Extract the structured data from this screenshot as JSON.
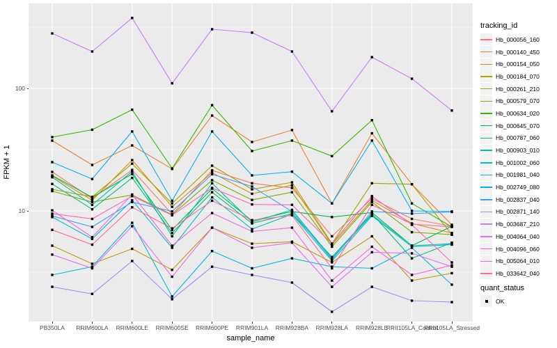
{
  "panel": {
    "bg": "#EBEBEB",
    "grid_color": "#FFFFFF",
    "tick_color": "#333333",
    "tick_label_color": "#4D4D4D",
    "marker_color": "#000000"
  },
  "chart_data": {
    "type": "line",
    "title": "",
    "xlabel": "sample_name",
    "ylabel": "FPKM + 1",
    "y_scale": "log10",
    "ylim": [
      1.25,
      490
    ],
    "y_tick_labels": [
      "100",
      "10"
    ],
    "y_tick_values": [
      100,
      10
    ],
    "y_minor_gridline_values": [
      3.162,
      31.623,
      316.23
    ],
    "grid": true,
    "legend_position": "right",
    "marker": "filled-square",
    "categories": [
      "PB350LA",
      "RRIM600LA",
      "RRIM600LE",
      "RRIM600SE",
      "RRIM600PE",
      "RRIM901LA",
      "RRIM928BA",
      "RRIM928LA",
      "RRIM928LE",
      "RRII105LA_Control",
      "RRII105LA_Stressed"
    ],
    "series": [
      {
        "name": "Hb_000056_160",
        "color": "#F8766D",
        "values": [
          20.8,
          12.6,
          21.6,
          9.4,
          21.4,
          16.8,
          15.4,
          6.2,
          12.6,
          8.6,
          7.5
        ]
      },
      {
        "name": "Hb_000140_450",
        "color": "#EA8331",
        "values": [
          37.5,
          23.7,
          34.2,
          22.0,
          60.0,
          36.5,
          45.7,
          11.5,
          43.0,
          16.5,
          7.7
        ]
      },
      {
        "name": "Hb_000154_050",
        "color": "#D89000",
        "values": [
          19.2,
          12.2,
          26.0,
          10.8,
          20.5,
          13.8,
          16.2,
          5.3,
          12.2,
          7.9,
          6.6
        ]
      },
      {
        "name": "Hb_000184_070",
        "color": "#C09B00",
        "values": [
          5.2,
          3.7,
          4.9,
          3.3,
          7.3,
          5.4,
          5.6,
          3.8,
          6.2,
          2.7,
          3.1
        ]
      },
      {
        "name": "Hb_000261_210",
        "color": "#A3A500",
        "values": [
          15.0,
          13.0,
          24.3,
          11.5,
          23.4,
          15.0,
          17.1,
          5.4,
          16.8,
          16.5,
          6.4
        ]
      },
      {
        "name": "Hb_000579_070",
        "color": "#7CAE00",
        "values": [
          14.5,
          11.8,
          13.5,
          9.3,
          17.8,
          12.3,
          14.2,
          5.1,
          11.8,
          6.7,
          6.4
        ]
      },
      {
        "name": "Hb_000634_020",
        "color": "#39B600",
        "values": [
          40.0,
          46.0,
          67.0,
          22.2,
          73.0,
          30.8,
          37.5,
          28.0,
          55.0,
          11.5,
          7.4
        ]
      },
      {
        "name": "Hb_000645_070",
        "color": "#00BB4E",
        "values": [
          19.5,
          12.9,
          20.0,
          7.0,
          15.2,
          8.3,
          9.9,
          8.9,
          9.7,
          5.2,
          7.5
        ]
      },
      {
        "name": "Hb_000787_060",
        "color": "#00BF7D",
        "values": [
          16.6,
          10.3,
          18.6,
          6.6,
          14.2,
          7.9,
          9.5,
          4.2,
          9.5,
          4.1,
          5.5
        ]
      },
      {
        "name": "Hb_000903_010",
        "color": "#00C1A3",
        "values": [
          18.8,
          11.2,
          21.0,
          6.2,
          16.8,
          8.1,
          10.2,
          4.1,
          9.3,
          5.2,
          5.4
        ]
      },
      {
        "name": "Hb_001002_060",
        "color": "#00BFC4",
        "values": [
          8.9,
          5.9,
          12.2,
          5.0,
          12.9,
          7.1,
          9.4,
          3.9,
          9.1,
          5.1,
          5.3
        ]
      },
      {
        "name": "Hb_001981_040",
        "color": "#00BAE0",
        "values": [
          3.0,
          3.5,
          8.0,
          2.0,
          4.7,
          3.4,
          4.1,
          3.5,
          3.4,
          5.0,
          2.5
        ]
      },
      {
        "name": "Hb_002749_080",
        "color": "#00B0F6",
        "values": [
          25.0,
          18.2,
          44.5,
          12.1,
          44.5,
          19.5,
          20.9,
          11.5,
          37.5,
          10.0,
          9.9
        ]
      },
      {
        "name": "Hb_002837_040",
        "color": "#35A2FF",
        "values": [
          9.1,
          7.4,
          11.8,
          9.9,
          19.9,
          15.8,
          9.9,
          4.0,
          9.9,
          9.5,
          9.8
        ]
      },
      {
        "name": "Hb_002871_140",
        "color": "#9590FF",
        "values": [
          2.4,
          2.1,
          3.9,
          1.9,
          3.5,
          3.0,
          2.6,
          1.5,
          2.4,
          1.85,
          1.8
        ]
      },
      {
        "name": "Hb_003687_210",
        "color": "#C77CFF",
        "values": [
          281,
          200,
          376,
          110,
          304,
          285,
          200,
          65,
          180,
          120,
          66
        ]
      },
      {
        "name": "Hb_004064_040",
        "color": "#E76BF3",
        "values": [
          4.4,
          3.4,
          7.5,
          2.9,
          7.3,
          5.0,
          5.5,
          2.4,
          4.6,
          4.5,
          3.5
        ]
      },
      {
        "name": "Hb_004096_060",
        "color": "#FA62DB",
        "values": [
          10.1,
          6.1,
          13.6,
          5.2,
          9.6,
          6.8,
          7.3,
          2.7,
          5.1,
          3.0,
          3.6
        ]
      },
      {
        "name": "Hb_005064_010",
        "color": "#FF62BC",
        "values": [
          9.5,
          8.6,
          13.2,
          9.2,
          15.4,
          11.3,
          11.2,
          5.4,
          13.2,
          7.7,
          3.8
        ]
      },
      {
        "name": "Hb_033642_040",
        "color": "#FF6A98",
        "values": [
          7.0,
          5.3,
          10.7,
          7.2,
          12.1,
          8.4,
          9.2,
          3.4,
          11.2,
          7.8,
          7.4
        ]
      }
    ],
    "legend_title": "tracking_id",
    "quant_legend": {
      "title": "quant_status",
      "items": [
        {
          "label": "OK",
          "shape": "filled-square",
          "color": "#000000"
        }
      ]
    }
  }
}
